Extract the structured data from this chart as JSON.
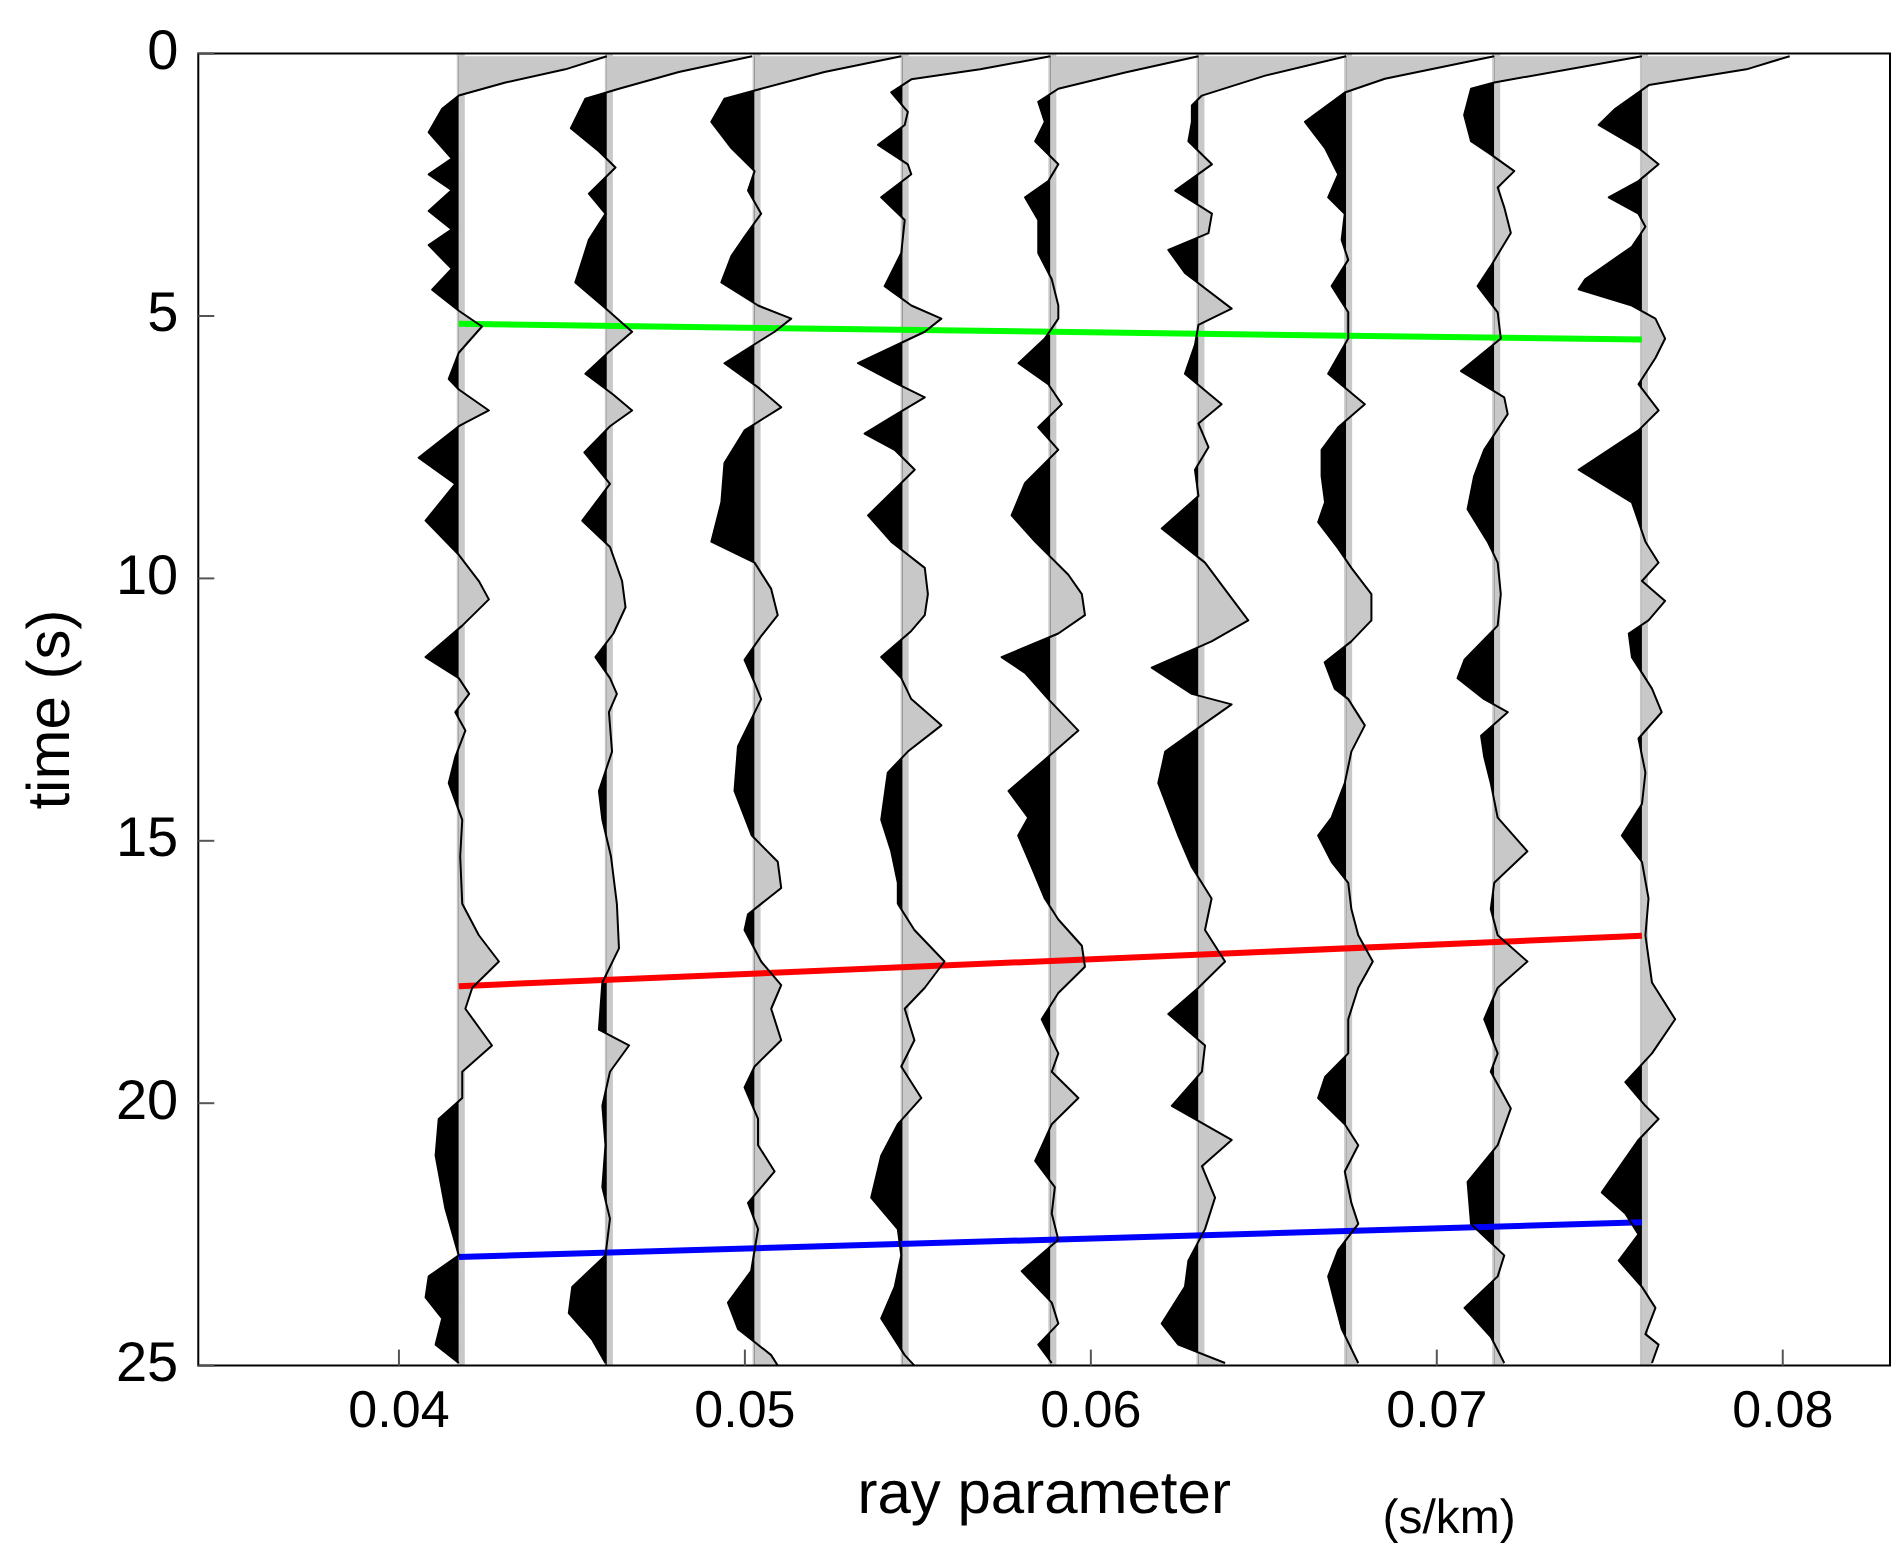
{
  "chart_data": {
    "type": "area",
    "xlabel": "ray parameter",
    "ylabel": "time (s)",
    "annotations": [
      "(s/km)"
    ],
    "xlim": [
      0.0342,
      0.0831
    ],
    "xticks": [
      0.04,
      0.05,
      0.06,
      0.07,
      0.08
    ],
    "ylim": [
      25,
      0
    ],
    "yticks": [
      0,
      5,
      10,
      15,
      20,
      25
    ],
    "legend": false,
    "ref_lines": [
      {
        "axis": "x",
        "value": 0.04173,
        "color": "#c8c8c8"
      },
      {
        "axis": "x",
        "value": 0.04601,
        "color": "#c8c8c8"
      },
      {
        "axis": "x",
        "value": 0.05028,
        "color": "#c8c8c8"
      },
      {
        "axis": "x",
        "value": 0.05456,
        "color": "#c8c8c8"
      },
      {
        "axis": "x",
        "value": 0.05883,
        "color": "#c8c8c8"
      },
      {
        "axis": "x",
        "value": 0.06311,
        "color": "#c8c8c8"
      },
      {
        "axis": "x",
        "value": 0.06738,
        "color": "#c8c8c8"
      },
      {
        "axis": "x",
        "value": 0.07166,
        "color": "#c8c8c8"
      },
      {
        "axis": "x",
        "value": 0.07593,
        "color": "#c8c8c8"
      }
    ],
    "series": [
      {
        "color": "#000000",
        "x": [
          0.04601,
          0.04481,
          0.04308,
          0.04173,
          0.04125,
          0.04086,
          0.04153,
          0.04086,
          0.04153,
          0.04086,
          0.04153,
          0.04086,
          0.04153,
          0.04096,
          0.04173,
          0.0424,
          0.04173,
          0.04144,
          0.04173,
          0.0426,
          0.04173,
          0.04057,
          0.04163,
          0.04077,
          0.04173,
          0.04231,
          0.0426,
          0.04183,
          0.04077,
          0.04173,
          0.04203,
          0.04163,
          0.04192,
          0.04163,
          0.04144,
          0.04183,
          0.04177,
          0.04183,
          0.04231,
          0.04289,
          0.04212,
          0.04192,
          0.04269,
          0.04183,
          0.04183,
          0.04115,
          0.04106,
          0.04134,
          0.04173,
          0.04086,
          0.04077,
          0.04125,
          0.04106,
          0.04173
        ],
        "values": [
          0.05,
          0.3,
          0.55,
          0.8,
          1.05,
          1.5,
          2.0,
          2.3,
          2.6,
          3.0,
          3.35,
          3.65,
          4.1,
          4.5,
          4.9,
          5.2,
          5.7,
          6.2,
          6.4,
          6.8,
          7.1,
          7.7,
          8.2,
          8.9,
          9.55,
          10.05,
          10.4,
          10.9,
          11.5,
          11.9,
          12.2,
          12.55,
          12.9,
          13.4,
          13.9,
          14.6,
          15.3,
          16.2,
          16.8,
          17.3,
          17.8,
          18.2,
          18.9,
          19.4,
          19.9,
          20.3,
          21.0,
          22.0,
          22.9,
          23.3,
          23.7,
          24.1,
          24.6,
          24.95
        ]
      },
      {
        "color": "#000000",
        "x": [
          0.05021,
          0.04809,
          0.04636,
          0.04539,
          0.04497,
          0.04578,
          0.04626,
          0.04549,
          0.04597,
          0.04549,
          0.0451,
          0.04588,
          0.04674,
          0.04607,
          0.04539,
          0.0462,
          0.04674,
          0.0461,
          0.04536,
          0.0461,
          0.0453,
          0.0461,
          0.04645,
          0.04655,
          0.0462,
          0.04568,
          0.0461,
          0.0463,
          0.04607,
          0.04616,
          0.04578,
          0.04588,
          0.04613,
          0.0463,
          0.04636,
          0.04588,
          0.04578,
          0.04665,
          0.0461,
          0.04588,
          0.04597,
          0.04588,
          0.0461,
          0.04597,
          0.04501,
          0.04491,
          0.04558,
          0.04597
        ],
        "values": [
          0.05,
          0.35,
          0.67,
          0.86,
          1.42,
          1.86,
          2.17,
          2.67,
          3.05,
          3.55,
          4.36,
          4.8,
          5.3,
          5.68,
          6.1,
          6.5,
          6.8,
          7.1,
          7.6,
          8.2,
          8.9,
          9.4,
          10.05,
          10.55,
          11.05,
          11.5,
          11.9,
          12.2,
          12.55,
          13.3,
          14.05,
          14.6,
          15.3,
          16.2,
          17.05,
          17.7,
          18.6,
          18.9,
          19.4,
          20.05,
          20.8,
          21.6,
          22.2,
          22.9,
          23.5,
          24.0,
          24.5,
          24.95
        ]
      },
      {
        "color": "#000000",
        "x": [
          0.05452,
          0.0523,
          0.05047,
          0.04941,
          0.04903,
          0.04961,
          0.05028,
          0.05009,
          0.05047,
          0.04999,
          0.04961,
          0.04932,
          0.05038,
          0.05134,
          0.05086,
          0.04941,
          0.05038,
          0.05105,
          0.04999,
          0.04941,
          0.04932,
          0.04903,
          0.05028,
          0.05076,
          0.05095,
          0.05047,
          0.04999,
          0.05028,
          0.05047,
          0.0498,
          0.0497,
          0.0502,
          0.05095,
          0.05105,
          0.05009,
          0.04999,
          0.05047,
          0.05105,
          0.05076,
          0.05105,
          0.05028,
          0.04999,
          0.05038,
          0.05038,
          0.05086,
          0.05009,
          0.05038,
          0.05018,
          0.04951,
          0.0498,
          0.05076,
          0.05095
        ],
        "values": [
          0.05,
          0.35,
          0.67,
          0.86,
          1.3,
          1.8,
          2.24,
          2.61,
          3.05,
          3.49,
          3.86,
          4.36,
          4.8,
          5.05,
          5.3,
          5.9,
          6.36,
          6.74,
          7.18,
          7.8,
          8.55,
          9.3,
          9.7,
          10.2,
          10.7,
          11.1,
          11.55,
          11.99,
          12.3,
          13.2,
          14.05,
          14.9,
          15.4,
          15.9,
          16.4,
          16.7,
          17.3,
          17.75,
          18.2,
          18.8,
          19.3,
          19.7,
          20.3,
          20.8,
          21.3,
          21.9,
          22.4,
          23.2,
          23.8,
          24.3,
          24.8,
          25.0
        ]
      },
      {
        "color": "#000000",
        "x": [
          0.05883,
          0.0568,
          0.05481,
          0.05423,
          0.05471,
          0.05462,
          0.05385,
          0.05471,
          0.05481,
          0.05394,
          0.05462,
          0.05452,
          0.05404,
          0.05481,
          0.05568,
          0.0552,
          0.05327,
          0.05442,
          0.0552,
          0.05423,
          0.05346,
          0.05433,
          0.05491,
          0.05356,
          0.05423,
          0.0552,
          0.05529,
          0.0552,
          0.05481,
          0.05394,
          0.05452,
          0.05481,
          0.05568,
          0.05471,
          0.05413,
          0.05394,
          0.05423,
          0.05442,
          0.05442,
          0.0549,
          0.05577,
          0.0552,
          0.05462,
          0.0549,
          0.05452,
          0.0551,
          0.05442,
          0.05394,
          0.05365,
          0.05442,
          0.05452,
          0.05433,
          0.05394,
          0.05462,
          0.0549
        ],
        "values": [
          0.05,
          0.3,
          0.49,
          0.74,
          1.11,
          1.36,
          1.74,
          2.11,
          2.3,
          2.74,
          3.17,
          3.8,
          4.43,
          4.8,
          5.05,
          5.3,
          5.9,
          6.3,
          6.55,
          6.93,
          7.24,
          7.55,
          7.93,
          8.8,
          9.3,
          9.8,
          10.3,
          10.7,
          11.0,
          11.5,
          11.9,
          12.3,
          12.8,
          13.3,
          13.7,
          14.6,
          15.2,
          15.8,
          16.2,
          16.7,
          17.3,
          17.8,
          18.2,
          18.8,
          19.3,
          19.9,
          20.4,
          21.0,
          21.8,
          22.4,
          22.9,
          23.5,
          24.1,
          24.8,
          25.0
        ]
      },
      {
        "color": "#000000",
        "x": [
          0.06311,
          0.06099,
          0.05906,
          0.05848,
          0.05867,
          0.05839,
          0.05906,
          0.05877,
          0.0581,
          0.05848,
          0.05848,
          0.05887,
          0.05906,
          0.05906,
          0.05867,
          0.05791,
          0.05877,
          0.05916,
          0.05848,
          0.05906,
          0.0581,
          0.05771,
          0.05839,
          0.05935,
          0.05974,
          0.05983,
          0.05906,
          0.05742,
          0.0581,
          0.05877,
          0.05964,
          0.05877,
          0.05762,
          0.05819,
          0.0579,
          0.05829,
          0.05867,
          0.05906,
          0.05974,
          0.05983,
          0.05906,
          0.05858,
          0.05906,
          0.05887,
          0.05964,
          0.05887,
          0.05839,
          0.05896,
          0.05887,
          0.05906,
          0.058,
          0.05887,
          0.05906,
          0.05848,
          0.05887
        ],
        "values": [
          0.05,
          0.36,
          0.67,
          0.92,
          1.3,
          1.67,
          2.11,
          2.43,
          2.74,
          3.17,
          3.8,
          4.3,
          4.8,
          5.05,
          5.43,
          5.9,
          6.3,
          6.68,
          7.12,
          7.55,
          8.18,
          8.8,
          9.3,
          9.93,
          10.3,
          10.7,
          11.05,
          11.5,
          11.8,
          12.3,
          12.9,
          13.4,
          14.05,
          14.56,
          14.9,
          15.5,
          16.1,
          16.5,
          17.0,
          17.4,
          17.9,
          18.4,
          19.05,
          19.4,
          19.9,
          20.4,
          21.1,
          21.6,
          22.1,
          22.6,
          23.2,
          23.8,
          24.2,
          24.6,
          24.95
        ]
      },
      {
        "color": "#000000",
        "x": [
          0.06738,
          0.06504,
          0.06321,
          0.06292,
          0.06292,
          0.06282,
          0.0635,
          0.06244,
          0.0635,
          0.0634,
          0.06224,
          0.06272,
          0.06407,
          0.06311,
          0.06301,
          0.06272,
          0.06378,
          0.06311,
          0.0634,
          0.06301,
          0.06311,
          0.06205,
          0.0633,
          0.06398,
          0.06455,
          0.06349,
          0.06176,
          0.06292,
          0.06407,
          0.06321,
          0.06215,
          0.06195,
          0.06253,
          0.06292,
          0.06349,
          0.0633,
          0.06388,
          0.06311,
          0.06224,
          0.0633,
          0.06321,
          0.06234,
          0.06407,
          0.06321,
          0.06359,
          0.0633,
          0.06282,
          0.06272,
          0.06205,
          0.06253,
          0.06388
        ],
        "values": [
          0.05,
          0.42,
          0.8,
          0.99,
          1.3,
          1.67,
          2.11,
          2.61,
          3.05,
          3.42,
          3.74,
          4.18,
          4.86,
          5.17,
          5.55,
          6.1,
          6.68,
          7.05,
          7.5,
          7.93,
          8.43,
          9.05,
          9.7,
          10.3,
          10.8,
          11.2,
          11.7,
          12.2,
          12.4,
          12.8,
          13.3,
          13.9,
          14.9,
          15.5,
          16.1,
          16.7,
          17.3,
          17.8,
          18.3,
          18.9,
          19.4,
          20.05,
          20.7,
          21.2,
          21.8,
          22.4,
          23.0,
          23.5,
          24.2,
          24.6,
          24.95
        ]
      },
      {
        "color": "#000000",
        "x": [
          0.07166,
          0.0685,
          0.06734,
          0.06619,
          0.06677,
          0.06715,
          0.06686,
          0.06734,
          0.06725,
          0.06744,
          0.06696,
          0.06744,
          0.06744,
          0.06686,
          0.06792,
          0.06715,
          0.06667,
          0.06667,
          0.06677,
          0.06657,
          0.06715,
          0.06753,
          0.06811,
          0.06811,
          0.06753,
          0.06676,
          0.06705,
          0.06744,
          0.06792,
          0.06753,
          0.06734,
          0.06696,
          0.06657,
          0.06696,
          0.06744,
          0.06753,
          0.06773,
          0.06815,
          0.06773,
          0.06744,
          0.06744,
          0.06677,
          0.06657,
          0.06734,
          0.06773,
          0.06734,
          0.06753,
          0.06773,
          0.06715,
          0.06686,
          0.06705,
          0.06725,
          0.06773
        ],
        "values": [
          0.05,
          0.48,
          0.74,
          1.3,
          1.8,
          2.3,
          2.74,
          3.05,
          3.55,
          3.93,
          4.43,
          4.93,
          5.43,
          6.1,
          6.68,
          7.12,
          7.55,
          8.05,
          8.55,
          8.93,
          9.43,
          9.8,
          10.3,
          10.8,
          11.2,
          11.6,
          12.1,
          12.3,
          12.8,
          13.3,
          13.9,
          14.56,
          14.9,
          15.4,
          15.8,
          16.3,
          16.8,
          17.3,
          17.8,
          18.4,
          19.05,
          19.5,
          19.9,
          20.4,
          20.8,
          21.3,
          21.9,
          22.3,
          22.8,
          23.3,
          23.8,
          24.3,
          24.95
        ]
      },
      {
        "color": "#000000",
        "x": [
          0.07593,
          0.07166,
          0.07099,
          0.07079,
          0.07099,
          0.07156,
          0.07224,
          0.07176,
          0.07195,
          0.07214,
          0.07156,
          0.07118,
          0.07176,
          0.07185,
          0.0707,
          0.07195,
          0.07205,
          0.07137,
          0.07108,
          0.07089,
          0.07147,
          0.07176,
          0.07185,
          0.07176,
          0.0708,
          0.0706,
          0.07137,
          0.07205,
          0.07128,
          0.07137,
          0.07156,
          0.07176,
          0.07262,
          0.07166,
          0.07156,
          0.07176,
          0.07262,
          0.07176,
          0.07137,
          0.07176,
          0.07156,
          0.07214,
          0.07176,
          0.07089,
          0.07099,
          0.07195,
          0.07176,
          0.0708,
          0.07156,
          0.07195
        ],
        "values": [
          0.05,
          0.55,
          0.67,
          1.17,
          1.67,
          1.92,
          2.24,
          2.55,
          2.93,
          3.42,
          4.05,
          4.43,
          4.93,
          5.43,
          6.05,
          6.55,
          6.87,
          7.55,
          8.05,
          8.68,
          9.3,
          9.7,
          10.3,
          10.9,
          11.55,
          11.9,
          12.3,
          12.55,
          13.0,
          13.4,
          13.9,
          14.56,
          15.2,
          15.8,
          16.3,
          16.8,
          17.3,
          17.8,
          18.4,
          19.05,
          19.4,
          20.1,
          20.8,
          21.5,
          22.3,
          22.9,
          23.3,
          23.9,
          24.45,
          24.95
        ]
      },
      {
        "color": "#000000",
        "x": [
          0.0802,
          0.07895,
          0.07613,
          0.07516,
          0.07468,
          0.07583,
          0.07641,
          0.07583,
          0.07497,
          0.07583,
          0.07603,
          0.07564,
          0.07429,
          0.0741,
          0.07564,
          0.07632,
          0.0766,
          0.07632,
          0.07583,
          0.07641,
          0.07583,
          0.0741,
          0.07564,
          0.07603,
          0.07641,
          0.07593,
          0.0766,
          0.07612,
          0.07555,
          0.07564,
          0.07622,
          0.0765,
          0.07583,
          0.07603,
          0.07593,
          0.07535,
          0.07593,
          0.07612,
          0.07603,
          0.07622,
          0.07689,
          0.07622,
          0.07545,
          0.07603,
          0.07641,
          0.07583,
          0.07477,
          0.07545,
          0.07583,
          0.07526,
          0.07593,
          0.07632,
          0.07603,
          0.07641,
          0.07622
        ],
        "values": [
          0.05,
          0.3,
          0.6,
          1.05,
          1.36,
          1.8,
          2.11,
          2.43,
          2.74,
          3.05,
          3.3,
          3.68,
          4.3,
          4.49,
          4.8,
          5.05,
          5.43,
          5.8,
          6.3,
          6.8,
          7.18,
          7.93,
          8.55,
          9.3,
          9.7,
          10.05,
          10.43,
          10.8,
          11.05,
          11.5,
          12.1,
          12.55,
          13.05,
          13.7,
          14.3,
          14.9,
          15.4,
          16.1,
          16.8,
          17.7,
          18.4,
          19.05,
          19.6,
          20.05,
          20.3,
          20.7,
          21.7,
          22.1,
          22.5,
          23.0,
          23.5,
          23.9,
          24.4,
          24.6,
          24.95
        ]
      },
      {
        "type": "line",
        "color": "#00ff00",
        "x": [
          0.04173,
          0.07593
        ],
        "values": [
          5.15,
          5.45
        ]
      },
      {
        "type": "line",
        "color": "#ff0000",
        "x": [
          0.04173,
          0.07593
        ],
        "values": [
          17.77,
          16.81
        ]
      },
      {
        "type": "line",
        "color": "#0000ff",
        "x": [
          0.04173,
          0.07593
        ],
        "values": [
          22.93,
          22.27
        ]
      }
    ]
  }
}
